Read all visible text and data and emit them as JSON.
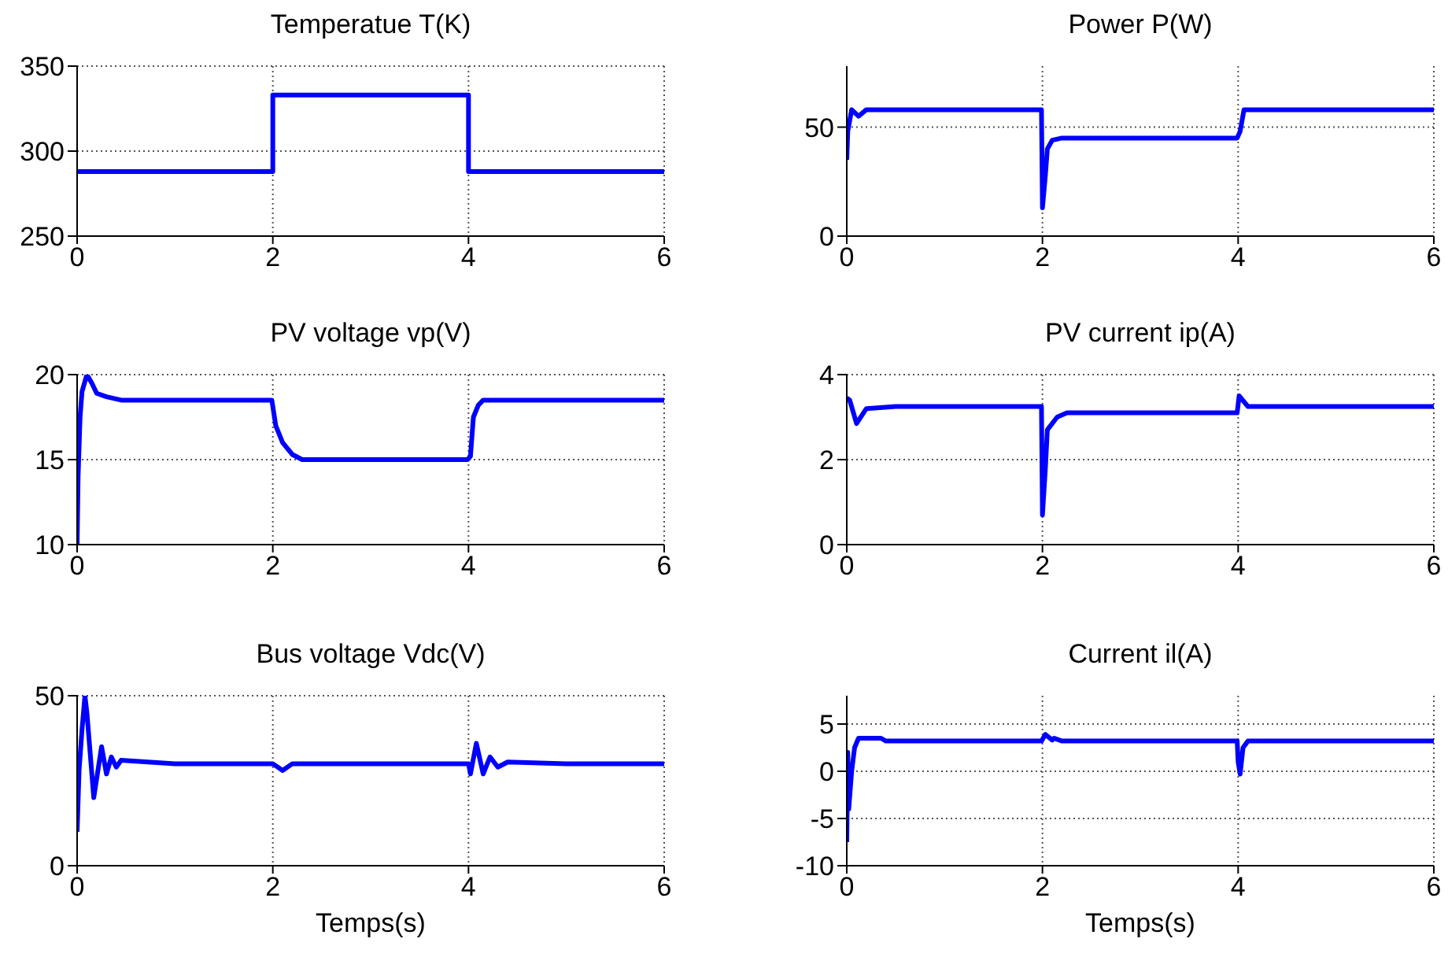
{
  "chart_data": [
    {
      "type": "line",
      "title": "Temperatue T(K)",
      "x": [
        0,
        2,
        2,
        4,
        4,
        6
      ],
      "values": [
        288,
        288,
        333,
        333,
        288,
        288
      ],
      "color": "#0000ff",
      "xlim": [
        0,
        6
      ],
      "xticks": [
        0,
        2,
        4,
        6
      ],
      "ylim": [
        250,
        350
      ],
      "yticks": [
        250,
        300,
        350
      ],
      "grid": true
    },
    {
      "type": "line",
      "title": "Power P(W)",
      "x": [
        0,
        0.01,
        0.05,
        0.12,
        0.2,
        1.99,
        2.0,
        2.03,
        2.05,
        2.1,
        2.2,
        3.99,
        4.02,
        4.06,
        6
      ],
      "values": [
        35,
        48,
        58,
        55,
        58,
        58,
        13,
        28,
        40,
        44,
        45,
        45,
        48,
        58,
        58
      ],
      "color": "#0000ff",
      "xlim": [
        0,
        6
      ],
      "xticks": [
        0,
        2,
        4,
        6
      ],
      "ylim": [
        0,
        78
      ],
      "yticks": [
        0,
        50
      ],
      "grid": true
    },
    {
      "type": "line",
      "title": "PV voltage vp(V)",
      "x": [
        0,
        0.01,
        0.03,
        0.05,
        0.1,
        0.15,
        0.2,
        0.3,
        0.45,
        1.99,
        2.03,
        2.1,
        2.2,
        2.3,
        3.99,
        4.02,
        4.05,
        4.1,
        4.15,
        6
      ],
      "values": [
        10,
        14,
        17.5,
        19,
        20,
        19.5,
        18.9,
        18.7,
        18.5,
        18.5,
        17,
        16,
        15.3,
        15,
        15,
        15.2,
        17.5,
        18.2,
        18.5,
        18.5
      ],
      "color": "#0000ff",
      "xlim": [
        0,
        6
      ],
      "xticks": [
        0,
        2,
        4,
        6
      ],
      "ylim": [
        10,
        20
      ],
      "yticks": [
        10,
        15,
        20
      ],
      "grid": true
    },
    {
      "type": "line",
      "title": "PV current ip(A)",
      "x": [
        0,
        0.03,
        0.1,
        0.2,
        0.5,
        1.99,
        2.0,
        2.03,
        2.05,
        2.15,
        2.25,
        3.99,
        4.01,
        4.1,
        6
      ],
      "values": [
        3.45,
        3.4,
        2.85,
        3.2,
        3.25,
        3.25,
        0.7,
        1.8,
        2.7,
        3.0,
        3.1,
        3.1,
        3.5,
        3.25,
        3.25
      ],
      "color": "#0000ff",
      "xlim": [
        0,
        6
      ],
      "xticks": [
        0,
        2,
        4,
        6
      ],
      "ylim": [
        0,
        4
      ],
      "yticks": [
        0,
        2,
        4
      ],
      "grid": true
    },
    {
      "type": "line",
      "title": "Bus voltage Vdc(V)",
      "xlabel": "Temps(s)",
      "x": [
        0,
        0.02,
        0.05,
        0.08,
        0.1,
        0.17,
        0.25,
        0.3,
        0.35,
        0.4,
        0.45,
        1.0,
        2.0,
        2.1,
        2.2,
        3.0,
        4.0,
        4.02,
        4.08,
        4.15,
        4.22,
        4.3,
        4.4,
        5.0,
        6
      ],
      "values": [
        10,
        28,
        40,
        50,
        45,
        20,
        35,
        27,
        32,
        29,
        31,
        30,
        30,
        28,
        30,
        30,
        30,
        27,
        36,
        27,
        32,
        29,
        30.5,
        30,
        30
      ],
      "color": "#0000ff",
      "xlim": [
        0,
        6
      ],
      "xticks": [
        0,
        2,
        4,
        6
      ],
      "ylim": [
        0,
        50
      ],
      "yticks": [
        0,
        50
      ],
      "grid": true
    },
    {
      "type": "line",
      "title": "Current il(A)",
      "xlabel": "Temps(s)",
      "x": [
        0,
        0.01,
        0.02,
        0.05,
        0.08,
        0.12,
        0.35,
        0.4,
        1.99,
        2.03,
        2.1,
        2.12,
        2.2,
        3.99,
        4.0,
        4.02,
        4.05,
        4.1,
        6
      ],
      "values": [
        -7.5,
        2,
        -4,
        0,
        2.5,
        3.5,
        3.5,
        3.2,
        3.2,
        3.9,
        3.3,
        3.5,
        3.2,
        3.2,
        1,
        -0.3,
        2.5,
        3.2,
        3.2
      ],
      "color": "#0000ff",
      "xlim": [
        0,
        6
      ],
      "xticks": [
        0,
        2,
        4,
        6
      ],
      "ylim": [
        -10,
        8
      ],
      "yticks": [
        -10,
        -5,
        0,
        5
      ],
      "grid": true
    }
  ]
}
